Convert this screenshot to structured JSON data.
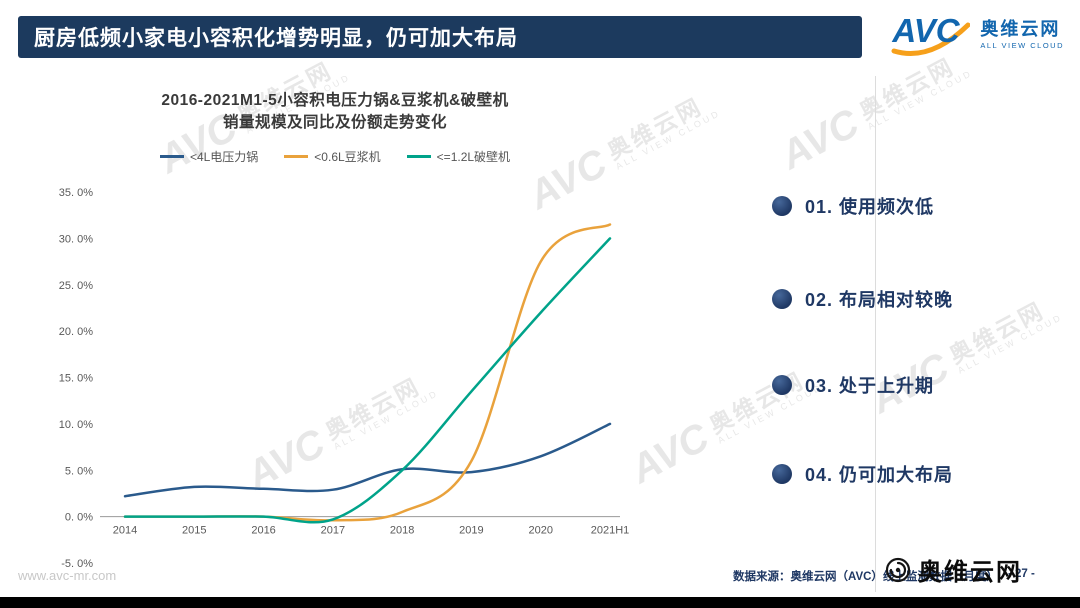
{
  "slide": {
    "title": "厨房低频小家电小容积化增势明显，仍可加大布局",
    "page_number": "- 27 -",
    "source_note": "数据来源：奥维云网（AVC）线上监测数据（月度）",
    "website": "www.avc-mr.com"
  },
  "logo": {
    "brand": "AVC",
    "cn": "奥维云网",
    "en": "ALL VIEW CLOUD"
  },
  "footer_logo": {
    "cn": "奥维云网"
  },
  "watermark": {
    "brand": "AVC",
    "cn": "奥维云网",
    "en": "ALL VIEW CLOUD"
  },
  "bullets": [
    {
      "label": "01. 使用频次低"
    },
    {
      "label": "02. 布局相对较晚"
    },
    {
      "label": "03. 处于上升期"
    },
    {
      "label": "04. 仍可加大布局"
    }
  ],
  "chart_data": {
    "type": "line",
    "title_line1": "2016-2021M1-5小容积电压力锅&豆浆机&破壁机",
    "title_line2": "销量规模及同比及份额走势变化",
    "categories": [
      "2014",
      "2015",
      "2016",
      "2017",
      "2018",
      "2019",
      "2020",
      "2021H1"
    ],
    "series": [
      {
        "name": "<4L电压力锅",
        "color": "#2A5A8C",
        "values": [
          2.2,
          3.2,
          3.0,
          2.9,
          5.1,
          4.8,
          6.5,
          10.0
        ]
      },
      {
        "name": "<0.6L豆浆机",
        "color": "#E9A23C",
        "values": [
          0.0,
          0.0,
          0.0,
          -0.4,
          0.5,
          6.0,
          27.5,
          31.5
        ]
      },
      {
        "name": "<=1.2L破壁机",
        "color": "#00A38A",
        "values": [
          0.0,
          0.0,
          0.0,
          -0.3,
          5.0,
          13.5,
          22.0,
          30.0
        ]
      }
    ],
    "xlabel": "",
    "ylabel": "",
    "ylim": [
      -5,
      35
    ],
    "ytick_values": [
      35,
      30,
      25,
      20,
      15,
      10,
      5,
      0,
      -5
    ],
    "ytick_labels": [
      "35. 0%",
      "30. 0%",
      "25. 0%",
      "20. 0%",
      "15. 0%",
      "10. 0%",
      "5. 0%",
      "0. 0%",
      "-5. 0%"
    ],
    "grid": false,
    "legend_position": "top"
  },
  "colors": {
    "title_bar_bg": "#1C3A5E",
    "navy": "#1F3864",
    "logo_blue": "#1266AE",
    "logo_orange": "#F6A01B"
  }
}
